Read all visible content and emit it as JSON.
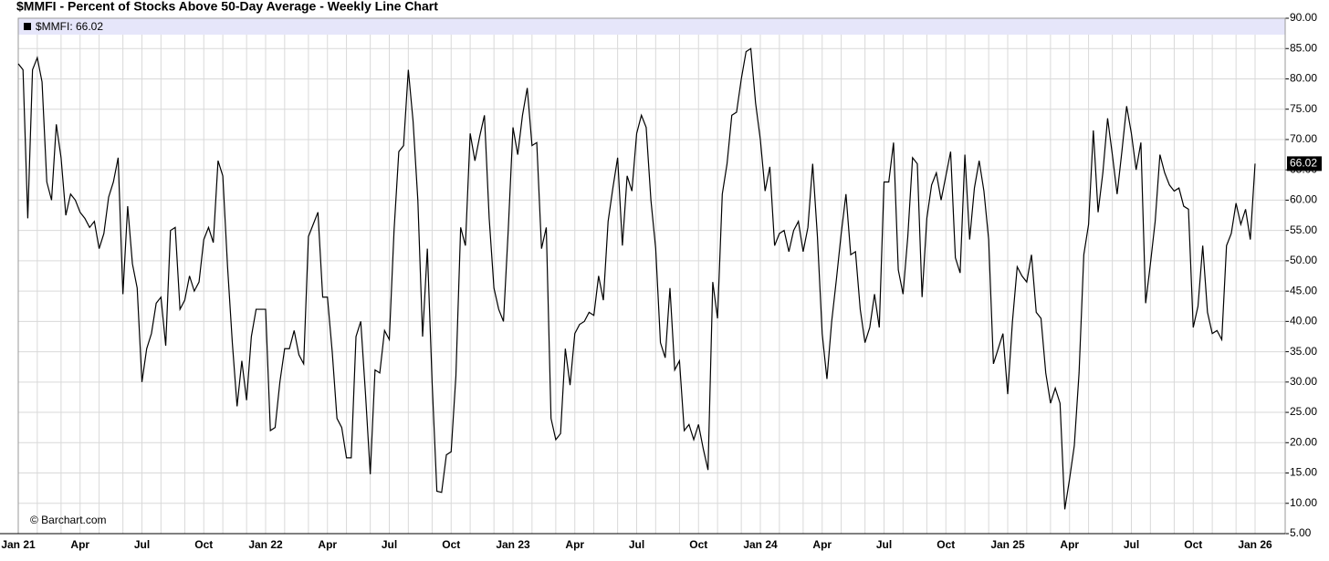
{
  "chart_data": {
    "type": "line",
    "title": "$MMFI - Percent of Stocks Above 50-Day Average - Weekly Line Chart",
    "legend": "$MMFI: 66.02",
    "watermark": "© Barchart.com",
    "categories": [
      "Jan 21",
      null,
      null,
      null,
      null,
      null,
      null,
      null,
      null,
      null,
      null,
      null,
      null,
      "Apr",
      null,
      null,
      null,
      null,
      null,
      null,
      null,
      null,
      null,
      null,
      null,
      null,
      "Jul",
      null,
      null,
      null,
      null,
      null,
      null,
      null,
      null,
      null,
      null,
      null,
      null,
      "Oct",
      null,
      null,
      null,
      null,
      null,
      null,
      null,
      null,
      null,
      null,
      null,
      null,
      "Jan 22",
      null,
      null,
      null,
      null,
      null,
      null,
      null,
      null,
      null,
      null,
      null,
      null,
      "Apr",
      null,
      null,
      null,
      null,
      null,
      null,
      null,
      null,
      null,
      null,
      null,
      null,
      "Jul",
      null,
      null,
      null,
      null,
      null,
      null,
      null,
      null,
      null,
      null,
      null,
      null,
      "Oct",
      null,
      null,
      null,
      null,
      null,
      null,
      null,
      null,
      null,
      null,
      null,
      null,
      "Jan 23",
      null,
      null,
      null,
      null,
      null,
      null,
      null,
      null,
      null,
      null,
      null,
      null,
      "Apr",
      null,
      null,
      null,
      null,
      null,
      null,
      null,
      null,
      null,
      null,
      null,
      null,
      "Jul",
      null,
      null,
      null,
      null,
      null,
      null,
      null,
      null,
      null,
      null,
      null,
      null,
      "Oct",
      null,
      null,
      null,
      null,
      null,
      null,
      null,
      null,
      null,
      null,
      null,
      null,
      "Jan 24",
      null,
      null,
      null,
      null,
      null,
      null,
      null,
      null,
      null,
      null,
      null,
      null,
      "Apr",
      null,
      null,
      null,
      null,
      null,
      null,
      null,
      null,
      null,
      null,
      null,
      null,
      "Jul",
      null,
      null,
      null,
      null,
      null,
      null,
      null,
      null,
      null,
      null,
      null,
      null,
      "Oct",
      null,
      null,
      null,
      null,
      null,
      null,
      null,
      null,
      null,
      null,
      null,
      null,
      "Jan 25",
      null,
      null,
      null,
      null,
      null,
      null,
      null,
      null,
      null,
      null,
      null,
      null,
      "Apr",
      null,
      null,
      null,
      null,
      null,
      null,
      null,
      null,
      null,
      null,
      null,
      null,
      "Jul",
      null,
      null,
      null,
      null,
      null,
      null,
      null,
      null,
      null,
      null,
      null,
      null,
      "Oct",
      null,
      null,
      null,
      null,
      null,
      null,
      null,
      null,
      null,
      null,
      null,
      null,
      "Jan 26"
    ],
    "series": [
      {
        "name": "$MMFI",
        "color": "#000000",
        "values": [
          82.5,
          81.5,
          57,
          81.5,
          83.5,
          79.5,
          63,
          60,
          72.5,
          67,
          57.5,
          61,
          60,
          58,
          57,
          55.5,
          56.5,
          52,
          54.5,
          60.5,
          63,
          67,
          44.5,
          59,
          49.5,
          45.5,
          30,
          35.5,
          38,
          43,
          44,
          36,
          55,
          55.5,
          42,
          43.5,
          47.5,
          45,
          46.5,
          53.5,
          55.5,
          53,
          66.5,
          64,
          49,
          36.5,
          26,
          33.5,
          27,
          37.5,
          42,
          42,
          42,
          22,
          22.5,
          30,
          35.5,
          35.5,
          38.5,
          34.5,
          33,
          54,
          56,
          58,
          44,
          44,
          35,
          24,
          22.5,
          17.5,
          17.5,
          37.5,
          40,
          28,
          14.8,
          32,
          31.5,
          38.5,
          37,
          55,
          68,
          69,
          81.5,
          73,
          60,
          37.5,
          52,
          30,
          12,
          11.8,
          18,
          18.5,
          31,
          55.5,
          52.5,
          71,
          66.5,
          70.5,
          74,
          57,
          45.5,
          42,
          40,
          55,
          72,
          67.5,
          74,
          78.5,
          69,
          69.5,
          52,
          55.5,
          24,
          20.5,
          21.5,
          35.5,
          29.5,
          38,
          39.5,
          40,
          41.5,
          41,
          47.5,
          43.5,
          56.5,
          62,
          67,
          52.5,
          64,
          61.5,
          71,
          74,
          72,
          60,
          52,
          36.5,
          34,
          45.5,
          32,
          33.5,
          22,
          23,
          20.5,
          23,
          19,
          15.5,
          46.5,
          40.5,
          61,
          66,
          74,
          74.5,
          80,
          84.5,
          85,
          76,
          70,
          61.5,
          65.5,
          52.5,
          54.5,
          55,
          51.5,
          55,
          56.5,
          51.5,
          55.5,
          66,
          54,
          38,
          30.5,
          40,
          47,
          54.5,
          61,
          51,
          51.5,
          42,
          36.5,
          39,
          44.5,
          39,
          63,
          63,
          69.5,
          48.5,
          44.5,
          54,
          67,
          66,
          44,
          57,
          62.5,
          64.5,
          60,
          64,
          68,
          50.5,
          48,
          67.5,
          53.5,
          62,
          66.5,
          61.5,
          53.5,
          33,
          35.5,
          38,
          28,
          40,
          49,
          47.5,
          46.5,
          51,
          41.5,
          40.5,
          31.5,
          26.5,
          29,
          26.5,
          9,
          14,
          19.5,
          31.5,
          51,
          56,
          71.5,
          58,
          64.5,
          73.5,
          67.5,
          61,
          68,
          75.5,
          71,
          65,
          69.5,
          43,
          49.5,
          56.5,
          67.5,
          64.5,
          62.5,
          61.5,
          62,
          59,
          58.5,
          39,
          42.5,
          52.5,
          41.5,
          38,
          38.5,
          37,
          52.5,
          54.5,
          59.5,
          56,
          58.5,
          53.5,
          66.02
        ]
      }
    ],
    "ylim": [
      5,
      90
    ],
    "yticks": [
      {
        "value": 5,
        "label": "5.00"
      },
      {
        "value": 10,
        "label": "10.00"
      },
      {
        "value": 15,
        "label": "15.00"
      },
      {
        "value": 20,
        "label": "20.00"
      },
      {
        "value": 25,
        "label": "25.00"
      },
      {
        "value": 30,
        "label": "30.00"
      },
      {
        "value": 35,
        "label": "35.00"
      },
      {
        "value": 40,
        "label": "40.00"
      },
      {
        "value": 45,
        "label": "45.00"
      },
      {
        "value": 50,
        "label": "50.00"
      },
      {
        "value": 55,
        "label": "55.00"
      },
      {
        "value": 60,
        "label": "60.00"
      },
      {
        "value": 65,
        "label": "65.00"
      },
      {
        "value": 70,
        "label": "70.00"
      },
      {
        "value": 75,
        "label": "75.00"
      },
      {
        "value": 80,
        "label": "80.00"
      },
      {
        "value": 85,
        "label": "85.00"
      },
      {
        "value": 90,
        "label": "90.00"
      }
    ],
    "grid": true
  }
}
